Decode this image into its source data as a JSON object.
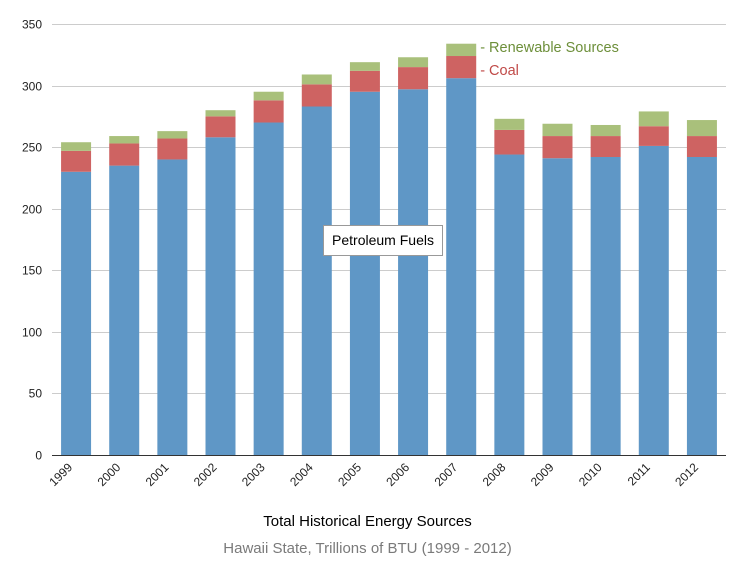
{
  "chart_data": {
    "type": "bar",
    "stacked": true,
    "title": "Total Historical Energy Sources",
    "subtitle": "Hawaii State, Trillions of BTU (1999 - 2012)",
    "categories": [
      "1999",
      "2000",
      "2001",
      "2002",
      "2003",
      "2004",
      "2005",
      "2006",
      "2007",
      "2008",
      "2009",
      "2010",
      "2011",
      "2012"
    ],
    "series": [
      {
        "name": "Petroleum Fuels",
        "color": "#5f97c6",
        "values": [
          230,
          235,
          240,
          258,
          270,
          283,
          295,
          297,
          306,
          244,
          241,
          242,
          251,
          242
        ]
      },
      {
        "name": "Coal",
        "color": "#ce6362",
        "values": [
          17,
          18,
          17,
          17,
          18,
          18,
          17,
          18,
          18,
          20,
          18,
          17,
          16,
          17
        ]
      },
      {
        "name": "Renewable Sources",
        "color": "#a9c07b",
        "values": [
          7,
          6,
          6,
          5,
          7,
          8,
          7,
          8,
          10,
          9,
          10,
          9,
          12,
          13
        ]
      }
    ],
    "ylim": [
      0,
      350
    ],
    "yticks": [
      0,
      50,
      100,
      150,
      200,
      250,
      300,
      350
    ],
    "grid": true,
    "legend": {
      "placement": "top-right",
      "entries": [
        {
          "label": "- Renewable Sources",
          "color": "#6d8f3a"
        },
        {
          "label": "- Coal",
          "color": "#c04a48"
        }
      ]
    },
    "inner_label": "Petroleum Fuels"
  }
}
